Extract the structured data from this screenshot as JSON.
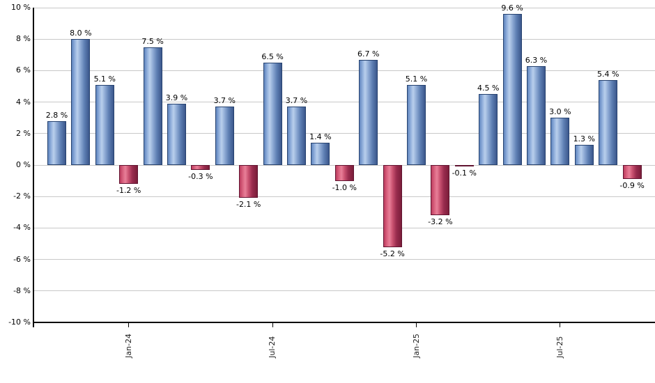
{
  "chart_data": {
    "type": "bar",
    "title": "",
    "xlabel": "",
    "ylabel": "",
    "ylim": [
      -10,
      10
    ],
    "grid": true,
    "legend": "none",
    "y_ticks": [
      {
        "value": 10,
        "label": "10 %"
      },
      {
        "value": 8,
        "label": "8 %"
      },
      {
        "value": 6,
        "label": "6 %"
      },
      {
        "value": 4,
        "label": "4 %"
      },
      {
        "value": 2,
        "label": "2 %"
      },
      {
        "value": 0,
        "label": "0 %"
      },
      {
        "value": -2,
        "label": "-2 %"
      },
      {
        "value": -4,
        "label": "-4 %"
      },
      {
        "value": -6,
        "label": "-6 %"
      },
      {
        "value": -8,
        "label": "-8 %"
      },
      {
        "value": -10,
        "label": "-10 %"
      }
    ],
    "x_ticks": [
      {
        "bar_index": 3,
        "label": "Jan-24"
      },
      {
        "bar_index": 9,
        "label": "Jul-24"
      },
      {
        "bar_index": 15,
        "label": "Jan-25"
      },
      {
        "bar_index": 21,
        "label": "Jul-25"
      }
    ],
    "bars": [
      {
        "value": 2.8,
        "label": "2.8 %"
      },
      {
        "value": 8.0,
        "label": "8.0 %"
      },
      {
        "value": 5.1,
        "label": "5.1 %"
      },
      {
        "value": -1.2,
        "label": "-1.2 %"
      },
      {
        "value": 7.5,
        "label": "7.5 %"
      },
      {
        "value": 3.9,
        "label": "3.9 %"
      },
      {
        "value": -0.3,
        "label": "-0.3 %"
      },
      {
        "value": 3.7,
        "label": "3.7 %"
      },
      {
        "value": -2.1,
        "label": "-2.1 %"
      },
      {
        "value": 6.5,
        "label": "6.5 %"
      },
      {
        "value": 3.7,
        "label": "3.7 %"
      },
      {
        "value": 1.4,
        "label": "1.4 %"
      },
      {
        "value": -1.0,
        "label": "-1.0 %"
      },
      {
        "value": 6.7,
        "label": "6.7 %"
      },
      {
        "value": -5.2,
        "label": "-5.2 %"
      },
      {
        "value": 5.1,
        "label": "5.1 %"
      },
      {
        "value": -3.2,
        "label": "-3.2 %"
      },
      {
        "value": -0.1,
        "label": "-0.1 %"
      },
      {
        "value": 4.5,
        "label": "4.5 %"
      },
      {
        "value": 9.6,
        "label": "9.6 %"
      },
      {
        "value": 6.3,
        "label": "6.3 %"
      },
      {
        "value": 3.0,
        "label": "3.0 %"
      },
      {
        "value": 1.3,
        "label": "1.3 %"
      },
      {
        "value": 5.4,
        "label": "5.4 %"
      },
      {
        "value": -0.9,
        "label": "-0.9 %"
      }
    ],
    "colors": {
      "positive_gradient": [
        "#5e84bd",
        "#93b1dd",
        "#b9cfec",
        "#8fabd5",
        "#5f80b4",
        "#3b578c"
      ],
      "positive_border": "#26426f",
      "negative_gradient": [
        "#bc3c5e",
        "#da6380",
        "#e87f98",
        "#c95270",
        "#992c4e",
        "#7b1e3a"
      ],
      "negative_border": "#611330",
      "gridline": "#c8c8c8",
      "axis": "#000000",
      "value_label": "#000000",
      "tick_label": "#222222"
    }
  }
}
